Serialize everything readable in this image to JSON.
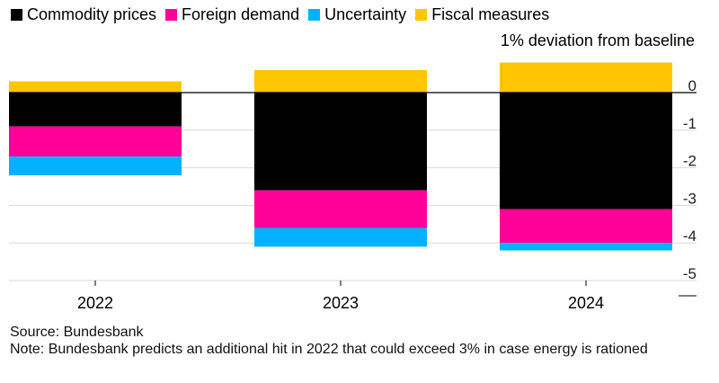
{
  "legend": {
    "items": [
      {
        "label": "Commodity prices",
        "color": "#000000"
      },
      {
        "label": "Foreign demand",
        "color": "#ff0099"
      },
      {
        "label": "Uncertainty",
        "color": "#00b2ff"
      },
      {
        "label": "Fiscal measures",
        "color": "#ffc600"
      }
    ]
  },
  "unit_label": "1% deviation from baseline",
  "source": "Source: Bundesbank",
  "note": "Note: Bundesbank predicts an additional hit in 2022 that could exceed 3% in case energy is rationed",
  "chart_data": {
    "type": "bar",
    "stacked": true,
    "categories": [
      "2022",
      "2023",
      "2024"
    ],
    "series": [
      {
        "name": "Commodity prices",
        "color": "#000000",
        "values": [
          -0.9,
          -2.6,
          -3.1
        ]
      },
      {
        "name": "Foreign demand",
        "color": "#ff0099",
        "values": [
          -0.8,
          -1.0,
          -0.9
        ]
      },
      {
        "name": "Uncertainty",
        "color": "#00b2ff",
        "values": [
          -0.5,
          -0.5,
          -0.2
        ]
      },
      {
        "name": "Fiscal measures",
        "color": "#ffc600",
        "values": [
          0.3,
          0.6,
          0.8
        ]
      }
    ],
    "yticks": [
      0,
      -1,
      -2,
      -3,
      -4,
      -5
    ],
    "ylim": [
      -5,
      0.5
    ],
    "grid": true,
    "legend_position": "top-left",
    "y_axis_position": "right"
  }
}
